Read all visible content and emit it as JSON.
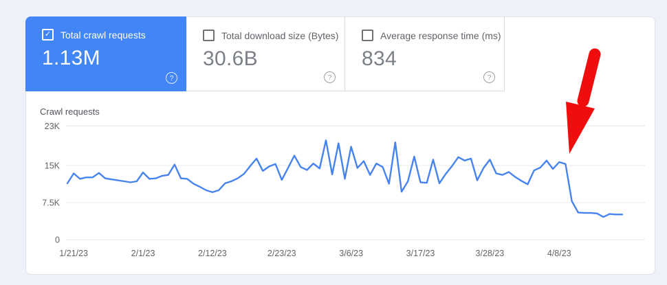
{
  "cards": [
    {
      "label": "Total crawl requests",
      "value": "1.13M",
      "checked": true
    },
    {
      "label": "Total download size (Bytes)",
      "value": "30.6B",
      "checked": false
    },
    {
      "label": "Average response time (ms)",
      "value": "834",
      "checked": false
    }
  ],
  "icons": {
    "check": "✓",
    "help": "?"
  },
  "chart_data": {
    "type": "line",
    "title": "Crawl requests",
    "series_name": "Total crawl requests",
    "x": [
      "1/20/23",
      "1/21/23",
      "1/22/23",
      "1/23/23",
      "1/24/23",
      "1/25/23",
      "1/26/23",
      "1/27/23",
      "1/28/23",
      "1/29/23",
      "1/30/23",
      "1/31/23",
      "2/1/23",
      "2/2/23",
      "2/3/23",
      "2/4/23",
      "2/5/23",
      "2/6/23",
      "2/7/23",
      "2/8/23",
      "2/9/23",
      "2/10/23",
      "2/11/23",
      "2/12/23",
      "2/13/23",
      "2/14/23",
      "2/15/23",
      "2/16/23",
      "2/17/23",
      "2/18/23",
      "2/19/23",
      "2/20/23",
      "2/21/23",
      "2/22/23",
      "2/23/23",
      "2/24/23",
      "2/25/23",
      "2/26/23",
      "2/27/23",
      "2/28/23",
      "3/1/23",
      "3/2/23",
      "3/3/23",
      "3/4/23",
      "3/5/23",
      "3/6/23",
      "3/7/23",
      "3/8/23",
      "3/9/23",
      "3/10/23",
      "3/11/23",
      "3/12/23",
      "3/13/23",
      "3/14/23",
      "3/15/23",
      "3/16/23",
      "3/17/23",
      "3/18/23",
      "3/19/23",
      "3/20/23",
      "3/21/23",
      "3/22/23",
      "3/23/23",
      "3/24/23",
      "3/25/23",
      "3/26/23",
      "3/27/23",
      "3/28/23",
      "3/29/23",
      "3/30/23",
      "3/31/23",
      "4/1/23",
      "4/2/23",
      "4/3/23",
      "4/4/23",
      "4/5/23",
      "4/6/23",
      "4/7/23",
      "4/8/23",
      "4/9/23",
      "4/10/23",
      "4/11/23",
      "4/12/23",
      "4/13/23",
      "4/14/23",
      "4/15/23",
      "4/16/23",
      "4/17/23",
      "4/18/23"
    ],
    "values": [
      11400,
      13400,
      12300,
      12600,
      12600,
      13500,
      12400,
      12200,
      12000,
      11800,
      11600,
      11800,
      13600,
      12300,
      12400,
      12900,
      13100,
      15200,
      12400,
      12300,
      11300,
      10700,
      10000,
      9600,
      10000,
      11400,
      11800,
      12400,
      13300,
      14900,
      16400,
      13900,
      14800,
      15300,
      12100,
      14500,
      17000,
      14700,
      14100,
      15400,
      14400,
      20100,
      13200,
      19500,
      12300,
      18800,
      14500,
      15900,
      13100,
      15400,
      14700,
      11300,
      19700,
      9700,
      11800,
      16800,
      11600,
      11500,
      16200,
      11400,
      13300,
      14900,
      16700,
      16000,
      16400,
      12000,
      14500,
      16200,
      13400,
      13100,
      13700,
      12700,
      11900,
      11200,
      14000,
      14600,
      16000,
      14300,
      15700,
      15300,
      7800,
      5500,
      5400,
      5400,
      5300,
      4600,
      5200,
      5100,
      5100
    ],
    "x_tick_labels": [
      "1/21/23",
      "2/1/23",
      "2/12/23",
      "2/23/23",
      "3/6/23",
      "3/17/23",
      "3/28/23",
      "4/8/23"
    ],
    "y_ticks": [
      {
        "label": "0",
        "value": 0
      },
      {
        "label": "7.5K",
        "value": 7500
      },
      {
        "label": "15K",
        "value": 15000
      },
      {
        "label": "23K",
        "value": 23000
      }
    ],
    "ylim": [
      0,
      24000
    ],
    "grid": true,
    "legend": "none",
    "line_color": "#4683ee"
  },
  "annotation": {
    "shape": "red-arrow",
    "color": "#ef0d0d"
  },
  "colors": {
    "page_bg": "#eef1fa",
    "selected_card_bg": "#4285f4",
    "card_border": "#dadce0",
    "grid_line": "#e5e8ed",
    "axis_text": "#5f6368",
    "unselected_value": "#7b8087"
  }
}
